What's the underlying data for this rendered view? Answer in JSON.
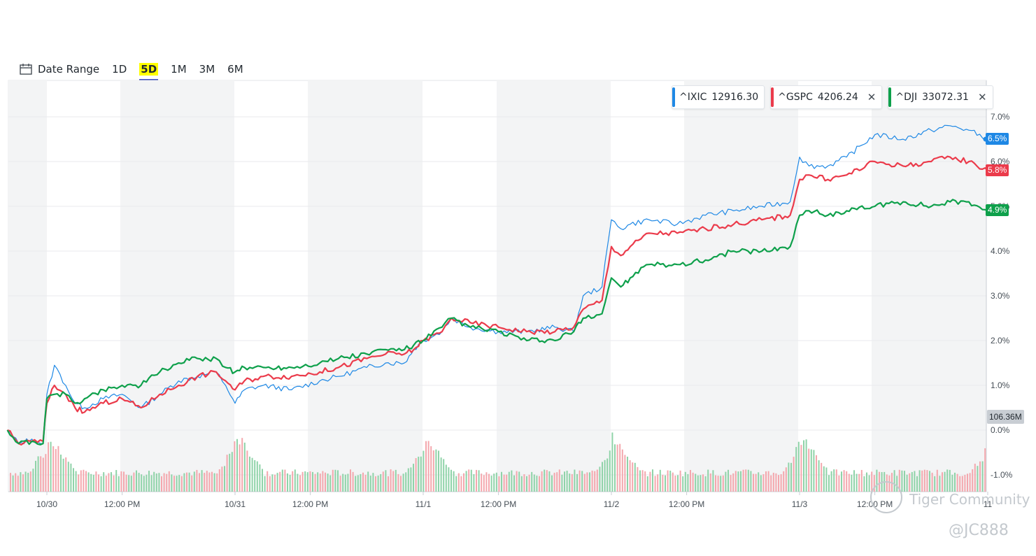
{
  "toolbar": {
    "date_range_label": "Date Range",
    "ranges": [
      "1D",
      "5D",
      "1M",
      "3M",
      "6M"
    ],
    "active_range": "5D"
  },
  "legend": [
    {
      "symbol": "^IXIC",
      "value": "12916.30",
      "color": "#1e88e5",
      "closable": false
    },
    {
      "symbol": "^GSPC",
      "value": "4206.24",
      "color": "#eb3b4b",
      "closable": true
    },
    {
      "symbol": "^DJI",
      "value": "33072.31",
      "color": "#0ea04b",
      "closable": true
    }
  ],
  "badges": [
    {
      "label": "6.5%",
      "value": 6.5,
      "color": "#1e88e5"
    },
    {
      "label": "5.8%",
      "value": 5.8,
      "color": "#eb3b4b"
    },
    {
      "label": "4.9%",
      "value": 4.9,
      "color": "#0ea04b"
    }
  ],
  "volume_badge": "106.36M",
  "watermark": {
    "brand": "Tiger Community",
    "handle": "@JC888"
  },
  "chart_data": {
    "type": "line",
    "x_unit": "trading day (0 = 10/30 open, 5 = 11/4 open)",
    "x_tick_labels": [
      {
        "x": 0,
        "label": "10/30"
      },
      {
        "x": 0.4,
        "label": "12:00 PM"
      },
      {
        "x": 1,
        "label": "10/31"
      },
      {
        "x": 1.4,
        "label": "12:00 PM"
      },
      {
        "x": 2,
        "label": "11/1"
      },
      {
        "x": 2.4,
        "label": "12:00 PM"
      },
      {
        "x": 3,
        "label": "11/2"
      },
      {
        "x": 3.4,
        "label": "12:00 PM"
      },
      {
        "x": 4,
        "label": "11/3"
      },
      {
        "x": 4.4,
        "label": "12:00 PM"
      },
      {
        "x": 5,
        "label": "11"
      }
    ],
    "y_ticks": [
      7,
      6,
      5,
      4,
      3,
      2,
      1,
      0,
      -1
    ],
    "y_tick_labels": [
      "7.0%",
      "6.0%",
      "5.0%",
      "4.0%",
      "3.0%",
      "2.0%",
      "1.0%",
      "0.0%",
      "-1.0%"
    ],
    "ylim": [
      -1.35,
      7.8
    ],
    "xlim": [
      -0.21,
      5.0
    ],
    "grid": true,
    "series": [
      {
        "name": "^IXIC",
        "color": "#1e88e5",
        "width": 1.2,
        "points": [
          [
            -0.21,
            0.0
          ],
          [
            -0.15,
            -0.3
          ],
          [
            -0.08,
            -0.2
          ],
          [
            -0.02,
            -0.3
          ],
          [
            0.0,
            0.8
          ],
          [
            0.04,
            1.45
          ],
          [
            0.1,
            1.0
          ],
          [
            0.15,
            0.6
          ],
          [
            0.2,
            0.5
          ],
          [
            0.3,
            0.7
          ],
          [
            0.4,
            0.8
          ],
          [
            0.5,
            0.5
          ],
          [
            0.6,
            0.8
          ],
          [
            0.7,
            1.1
          ],
          [
            0.8,
            1.2
          ],
          [
            0.9,
            1.3
          ],
          [
            0.95,
            1.0
          ],
          [
            1.0,
            0.6
          ],
          [
            1.05,
            0.9
          ],
          [
            1.15,
            1.0
          ],
          [
            1.3,
            0.9
          ],
          [
            1.45,
            1.1
          ],
          [
            1.55,
            1.2
          ],
          [
            1.7,
            1.4
          ],
          [
            1.8,
            1.5
          ],
          [
            1.9,
            1.5
          ],
          [
            1.95,
            1.8
          ],
          [
            2.0,
            2.0
          ],
          [
            2.1,
            2.2
          ],
          [
            2.15,
            2.5
          ],
          [
            2.25,
            2.3
          ],
          [
            2.4,
            2.2
          ],
          [
            2.55,
            2.2
          ],
          [
            2.7,
            2.3
          ],
          [
            2.8,
            2.2
          ],
          [
            2.85,
            3.0
          ],
          [
            2.95,
            3.2
          ],
          [
            3.0,
            4.7
          ],
          [
            3.05,
            4.5
          ],
          [
            3.1,
            4.6
          ],
          [
            3.2,
            4.7
          ],
          [
            3.35,
            4.6
          ],
          [
            3.5,
            4.8
          ],
          [
            3.65,
            4.9
          ],
          [
            3.8,
            5.0
          ],
          [
            3.95,
            5.1
          ],
          [
            4.0,
            6.1
          ],
          [
            4.05,
            5.9
          ],
          [
            4.15,
            5.9
          ],
          [
            4.25,
            6.1
          ],
          [
            4.4,
            6.6
          ],
          [
            4.55,
            6.5
          ],
          [
            4.7,
            6.7
          ],
          [
            4.8,
            6.8
          ],
          [
            4.9,
            6.7
          ],
          [
            5.0,
            6.5
          ]
        ]
      },
      {
        "name": "^GSPC",
        "color": "#eb3b4b",
        "width": 2.2,
        "points": [
          [
            -0.21,
            0.0
          ],
          [
            -0.15,
            -0.3
          ],
          [
            -0.08,
            -0.25
          ],
          [
            -0.02,
            -0.25
          ],
          [
            0.0,
            0.6
          ],
          [
            0.04,
            1.0
          ],
          [
            0.1,
            0.8
          ],
          [
            0.15,
            0.5
          ],
          [
            0.2,
            0.4
          ],
          [
            0.3,
            0.6
          ],
          [
            0.4,
            0.7
          ],
          [
            0.5,
            0.5
          ],
          [
            0.6,
            0.8
          ],
          [
            0.7,
            1.0
          ],
          [
            0.8,
            1.2
          ],
          [
            0.9,
            1.3
          ],
          [
            0.95,
            1.1
          ],
          [
            1.0,
            0.9
          ],
          [
            1.05,
            1.1
          ],
          [
            1.15,
            1.2
          ],
          [
            1.3,
            1.2
          ],
          [
            1.45,
            1.3
          ],
          [
            1.55,
            1.4
          ],
          [
            1.7,
            1.6
          ],
          [
            1.8,
            1.7
          ],
          [
            1.9,
            1.7
          ],
          [
            1.95,
            1.8
          ],
          [
            2.0,
            2.0
          ],
          [
            2.1,
            2.2
          ],
          [
            2.15,
            2.5
          ],
          [
            2.25,
            2.4
          ],
          [
            2.4,
            2.3
          ],
          [
            2.55,
            2.2
          ],
          [
            2.7,
            2.2
          ],
          [
            2.8,
            2.3
          ],
          [
            2.85,
            2.7
          ],
          [
            2.95,
            2.9
          ],
          [
            3.0,
            4.1
          ],
          [
            3.05,
            3.9
          ],
          [
            3.1,
            4.1
          ],
          [
            3.2,
            4.4
          ],
          [
            3.35,
            4.4
          ],
          [
            3.5,
            4.5
          ],
          [
            3.65,
            4.6
          ],
          [
            3.8,
            4.7
          ],
          [
            3.95,
            4.8
          ],
          [
            4.0,
            5.6
          ],
          [
            4.05,
            5.7
          ],
          [
            4.15,
            5.6
          ],
          [
            4.25,
            5.7
          ],
          [
            4.4,
            6.0
          ],
          [
            4.55,
            5.9
          ],
          [
            4.7,
            6.0
          ],
          [
            4.8,
            6.1
          ],
          [
            4.9,
            6.0
          ],
          [
            5.0,
            5.8
          ]
        ]
      },
      {
        "name": "^DJI",
        "color": "#0ea04b",
        "width": 2.2,
        "points": [
          [
            -0.21,
            0.0
          ],
          [
            -0.15,
            -0.3
          ],
          [
            -0.08,
            -0.25
          ],
          [
            -0.02,
            -0.3
          ],
          [
            0.0,
            0.7
          ],
          [
            0.04,
            0.8
          ],
          [
            0.1,
            0.8
          ],
          [
            0.15,
            0.6
          ],
          [
            0.2,
            0.7
          ],
          [
            0.3,
            0.9
          ],
          [
            0.4,
            1.0
          ],
          [
            0.5,
            1.0
          ],
          [
            0.6,
            1.3
          ],
          [
            0.7,
            1.5
          ],
          [
            0.8,
            1.6
          ],
          [
            0.9,
            1.6
          ],
          [
            0.95,
            1.4
          ],
          [
            1.0,
            1.3
          ],
          [
            1.05,
            1.4
          ],
          [
            1.15,
            1.4
          ],
          [
            1.3,
            1.4
          ],
          [
            1.45,
            1.5
          ],
          [
            1.55,
            1.6
          ],
          [
            1.7,
            1.7
          ],
          [
            1.8,
            1.8
          ],
          [
            1.9,
            1.8
          ],
          [
            1.95,
            1.9
          ],
          [
            2.0,
            2.0
          ],
          [
            2.1,
            2.3
          ],
          [
            2.15,
            2.5
          ],
          [
            2.25,
            2.3
          ],
          [
            2.4,
            2.2
          ],
          [
            2.55,
            2.0
          ],
          [
            2.7,
            2.0
          ],
          [
            2.8,
            2.2
          ],
          [
            2.85,
            2.5
          ],
          [
            2.95,
            2.6
          ],
          [
            3.0,
            3.4
          ],
          [
            3.05,
            3.2
          ],
          [
            3.1,
            3.4
          ],
          [
            3.2,
            3.7
          ],
          [
            3.35,
            3.7
          ],
          [
            3.5,
            3.8
          ],
          [
            3.65,
            4.0
          ],
          [
            3.8,
            4.0
          ],
          [
            3.95,
            4.1
          ],
          [
            4.0,
            4.8
          ],
          [
            4.05,
            4.9
          ],
          [
            4.15,
            4.8
          ],
          [
            4.25,
            4.9
          ],
          [
            4.4,
            5.0
          ],
          [
            4.55,
            5.1
          ],
          [
            4.7,
            5.0
          ],
          [
            4.8,
            5.1
          ],
          [
            4.9,
            5.1
          ],
          [
            5.0,
            4.9
          ]
        ]
      }
    ]
  }
}
